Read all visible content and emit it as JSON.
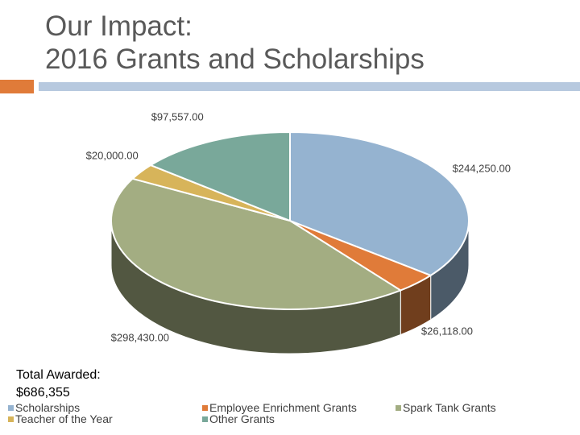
{
  "title": {
    "line1": "Our Impact:",
    "line2": "2016 Grants and Scholarships"
  },
  "accent_colors": {
    "square": "#e07b39",
    "bar": "#b7c9df"
  },
  "total": {
    "line1": "Total Awarded:",
    "line2": "$686,355"
  },
  "chart_data": {
    "type": "pie",
    "style": "3d",
    "series": [
      {
        "name": "Scholarships",
        "value": 244250,
        "label": "$244,250.00",
        "color": "#95b3d0"
      },
      {
        "name": "Employee Enrichment Grants",
        "value": 26118,
        "label": "$26,118.00",
        "color": "#e07b39"
      },
      {
        "name": "Spark Tank Grants",
        "value": 298430,
        "label": "$298,430.00",
        "color": "#a3ad82"
      },
      {
        "name": "Teacher of the Year",
        "value": 20000,
        "label": "$20,000.00",
        "color": "#d7b45a"
      },
      {
        "name": "Other Grants",
        "value": 97557,
        "label": "$97,557.00",
        "color": "#79a89a"
      }
    ],
    "legend_position": "bottom"
  }
}
